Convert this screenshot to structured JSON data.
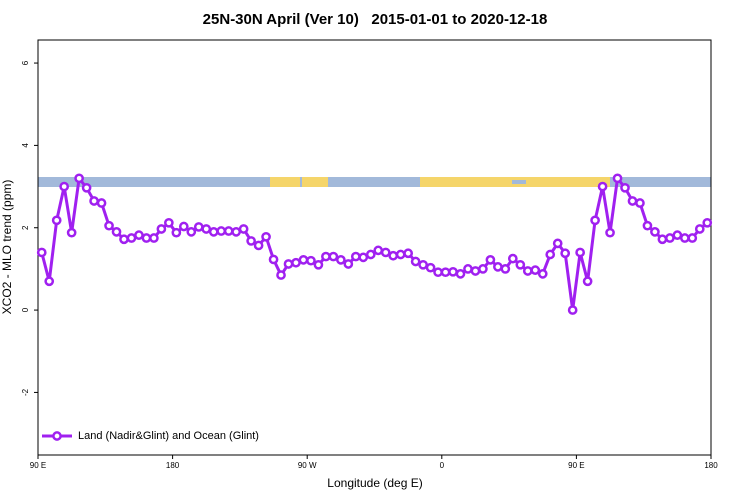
{
  "chart_data": {
    "type": "line",
    "title": "25N-30N April (Ver 10)   2015-01-01 to 2020-12-18",
    "xlabel": "Longitude (deg E)",
    "ylabel": "XCO2 - MLO trend (ppm)",
    "xlim": [
      90,
      540
    ],
    "xticks": [
      {
        "value": 90,
        "label": "90 E"
      },
      180,
      {
        "value": 270,
        "label": "90 W"
      },
      {
        "value": 360,
        "label": "0"
      },
      {
        "value": 450,
        "label": "90 E"
      },
      {
        "value": 540,
        "label": "180"
      }
    ],
    "ylim": [
      -3.52,
      6.56
    ],
    "yticks": [
      -2,
      0,
      2,
      4,
      6
    ],
    "legend": "bottom-left",
    "x": [
      92.5,
      97.5,
      102.5,
      107.5,
      112.5,
      117.5,
      122.5,
      127.5,
      132.5,
      137.5,
      142.5,
      147.5,
      152.5,
      157.5,
      162.5,
      167.5,
      172.5,
      177.5,
      182.5,
      187.5,
      192.5,
      197.5,
      202.5,
      207.5,
      212.5,
      217.5,
      222.5,
      227.5,
      232.5,
      237.5,
      242.5,
      247.5,
      252.5,
      257.5,
      262.5,
      267.5,
      272.5,
      277.5,
      282.5,
      287.5,
      292.5,
      297.5,
      302.5,
      307.5,
      312.5,
      317.5,
      322.5,
      327.5,
      332.5,
      337.5,
      342.5,
      347.5,
      352.5,
      357.5,
      362.5,
      367.5,
      372.5,
      377.5,
      382.5,
      387.5,
      392.5,
      397.5,
      402.5,
      407.5,
      412.5,
      417.5,
      422.5,
      427.5,
      432.5,
      437.5,
      442.5,
      447.5,
      452.5,
      457.5,
      462.5,
      467.5,
      472.5,
      477.5,
      482.5,
      487.5,
      492.5,
      497.5,
      502.5,
      507.5,
      512.5,
      517.5,
      522.5,
      527.5,
      532.5,
      537.5
    ],
    "series": [
      {
        "name": "Land (Nadir&Glint) and Ocean (Glint)",
        "color": "#a020f0",
        "values": [
          1.4,
          0.7,
          2.18,
          3.0,
          1.88,
          3.2,
          2.97,
          2.65,
          2.6,
          2.05,
          1.9,
          1.72,
          1.75,
          1.82,
          1.75,
          1.75,
          1.97,
          2.12,
          1.88,
          2.03,
          1.9,
          2.02,
          1.97,
          1.9,
          1.92,
          1.92,
          1.9,
          1.97,
          1.68,
          1.57,
          1.78,
          1.23,
          0.85,
          1.12,
          1.15,
          1.22,
          1.2,
          1.1,
          1.3,
          1.3,
          1.22,
          1.12,
          1.3,
          1.28,
          1.35,
          1.45,
          1.4,
          1.32,
          1.35,
          1.38,
          1.18,
          1.1,
          1.03,
          0.92,
          0.92,
          0.93,
          0.88,
          1.0,
          0.95,
          1.0,
          1.22,
          1.05,
          1.0,
          1.25,
          1.1,
          0.95,
          0.97,
          0.88,
          1.35,
          1.62,
          1.38,
          0.0,
          1.4,
          0.7,
          2.18,
          3.0,
          1.88,
          3.2,
          2.97,
          2.65,
          2.6,
          2.05,
          1.9,
          1.72,
          1.75,
          1.82,
          1.75,
          1.75,
          1.97,
          2.12
        ]
      }
    ]
  }
}
